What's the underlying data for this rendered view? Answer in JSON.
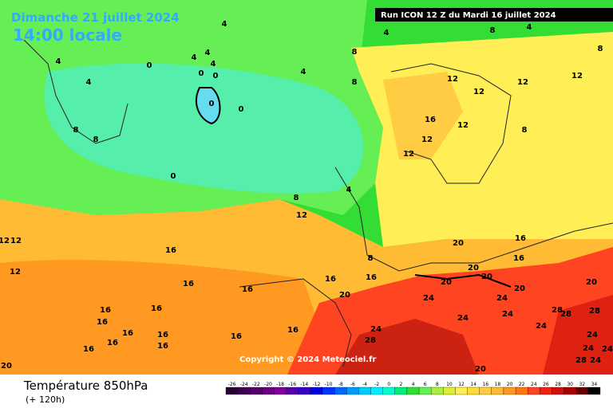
{
  "header": {
    "date": "Dimanche 21 juillet 2024",
    "time": "14:00 locale",
    "run": "Run ICON 12 Z du Mardi 16 juillet 2024"
  },
  "map": {
    "copyright": "Copyright © 2024 Meteociel.fr",
    "contour_labels": [
      4,
      4,
      4,
      8,
      8,
      8,
      4,
      4,
      4,
      4,
      0,
      0,
      0,
      4,
      4,
      8,
      12,
      12,
      12,
      12,
      0,
      0,
      8,
      8,
      16,
      12,
      8,
      12,
      12,
      0,
      4,
      8,
      12,
      12,
      12,
      16,
      8,
      12,
      16,
      16,
      16,
      16,
      20,
      20,
      20,
      16,
      16,
      20,
      20,
      20,
      20,
      24,
      24,
      16,
      16,
      24,
      24,
      28,
      28,
      28,
      16,
      16,
      16,
      24,
      24,
      24,
      16,
      16,
      16,
      16,
      28,
      16,
      24,
      24,
      20,
      24,
      28,
      20
    ]
  },
  "footer": {
    "title": "Température 850hPa",
    "lead": "(+ 120h)"
  },
  "scale": {
    "ticks": [
      -26,
      -24,
      -22,
      -20,
      -18,
      -16,
      -14,
      -12,
      -10,
      -8,
      -6,
      -4,
      -2,
      0,
      2,
      4,
      6,
      8,
      10,
      12,
      14,
      16,
      18,
      20,
      22,
      24,
      26,
      28,
      30,
      32,
      34
    ],
    "colors": [
      "#2a0033",
      "#40004d",
      "#550066",
      "#6a0080",
      "#800099",
      "#5500aa",
      "#3300cc",
      "#0000dd",
      "#0033ff",
      "#0066ff",
      "#0099ff",
      "#00ccff",
      "#00eeff",
      "#00ffcc",
      "#00ee77",
      "#33dd33",
      "#66ee55",
      "#aaee44",
      "#ddee33",
      "#ffee55",
      "#ffdd33",
      "#ffcc44",
      "#ffbb33",
      "#ff9922",
      "#ff7711",
      "#ff4422",
      "#ee2211",
      "#cc1111",
      "#aa0000",
      "#660000",
      "#000000"
    ]
  }
}
